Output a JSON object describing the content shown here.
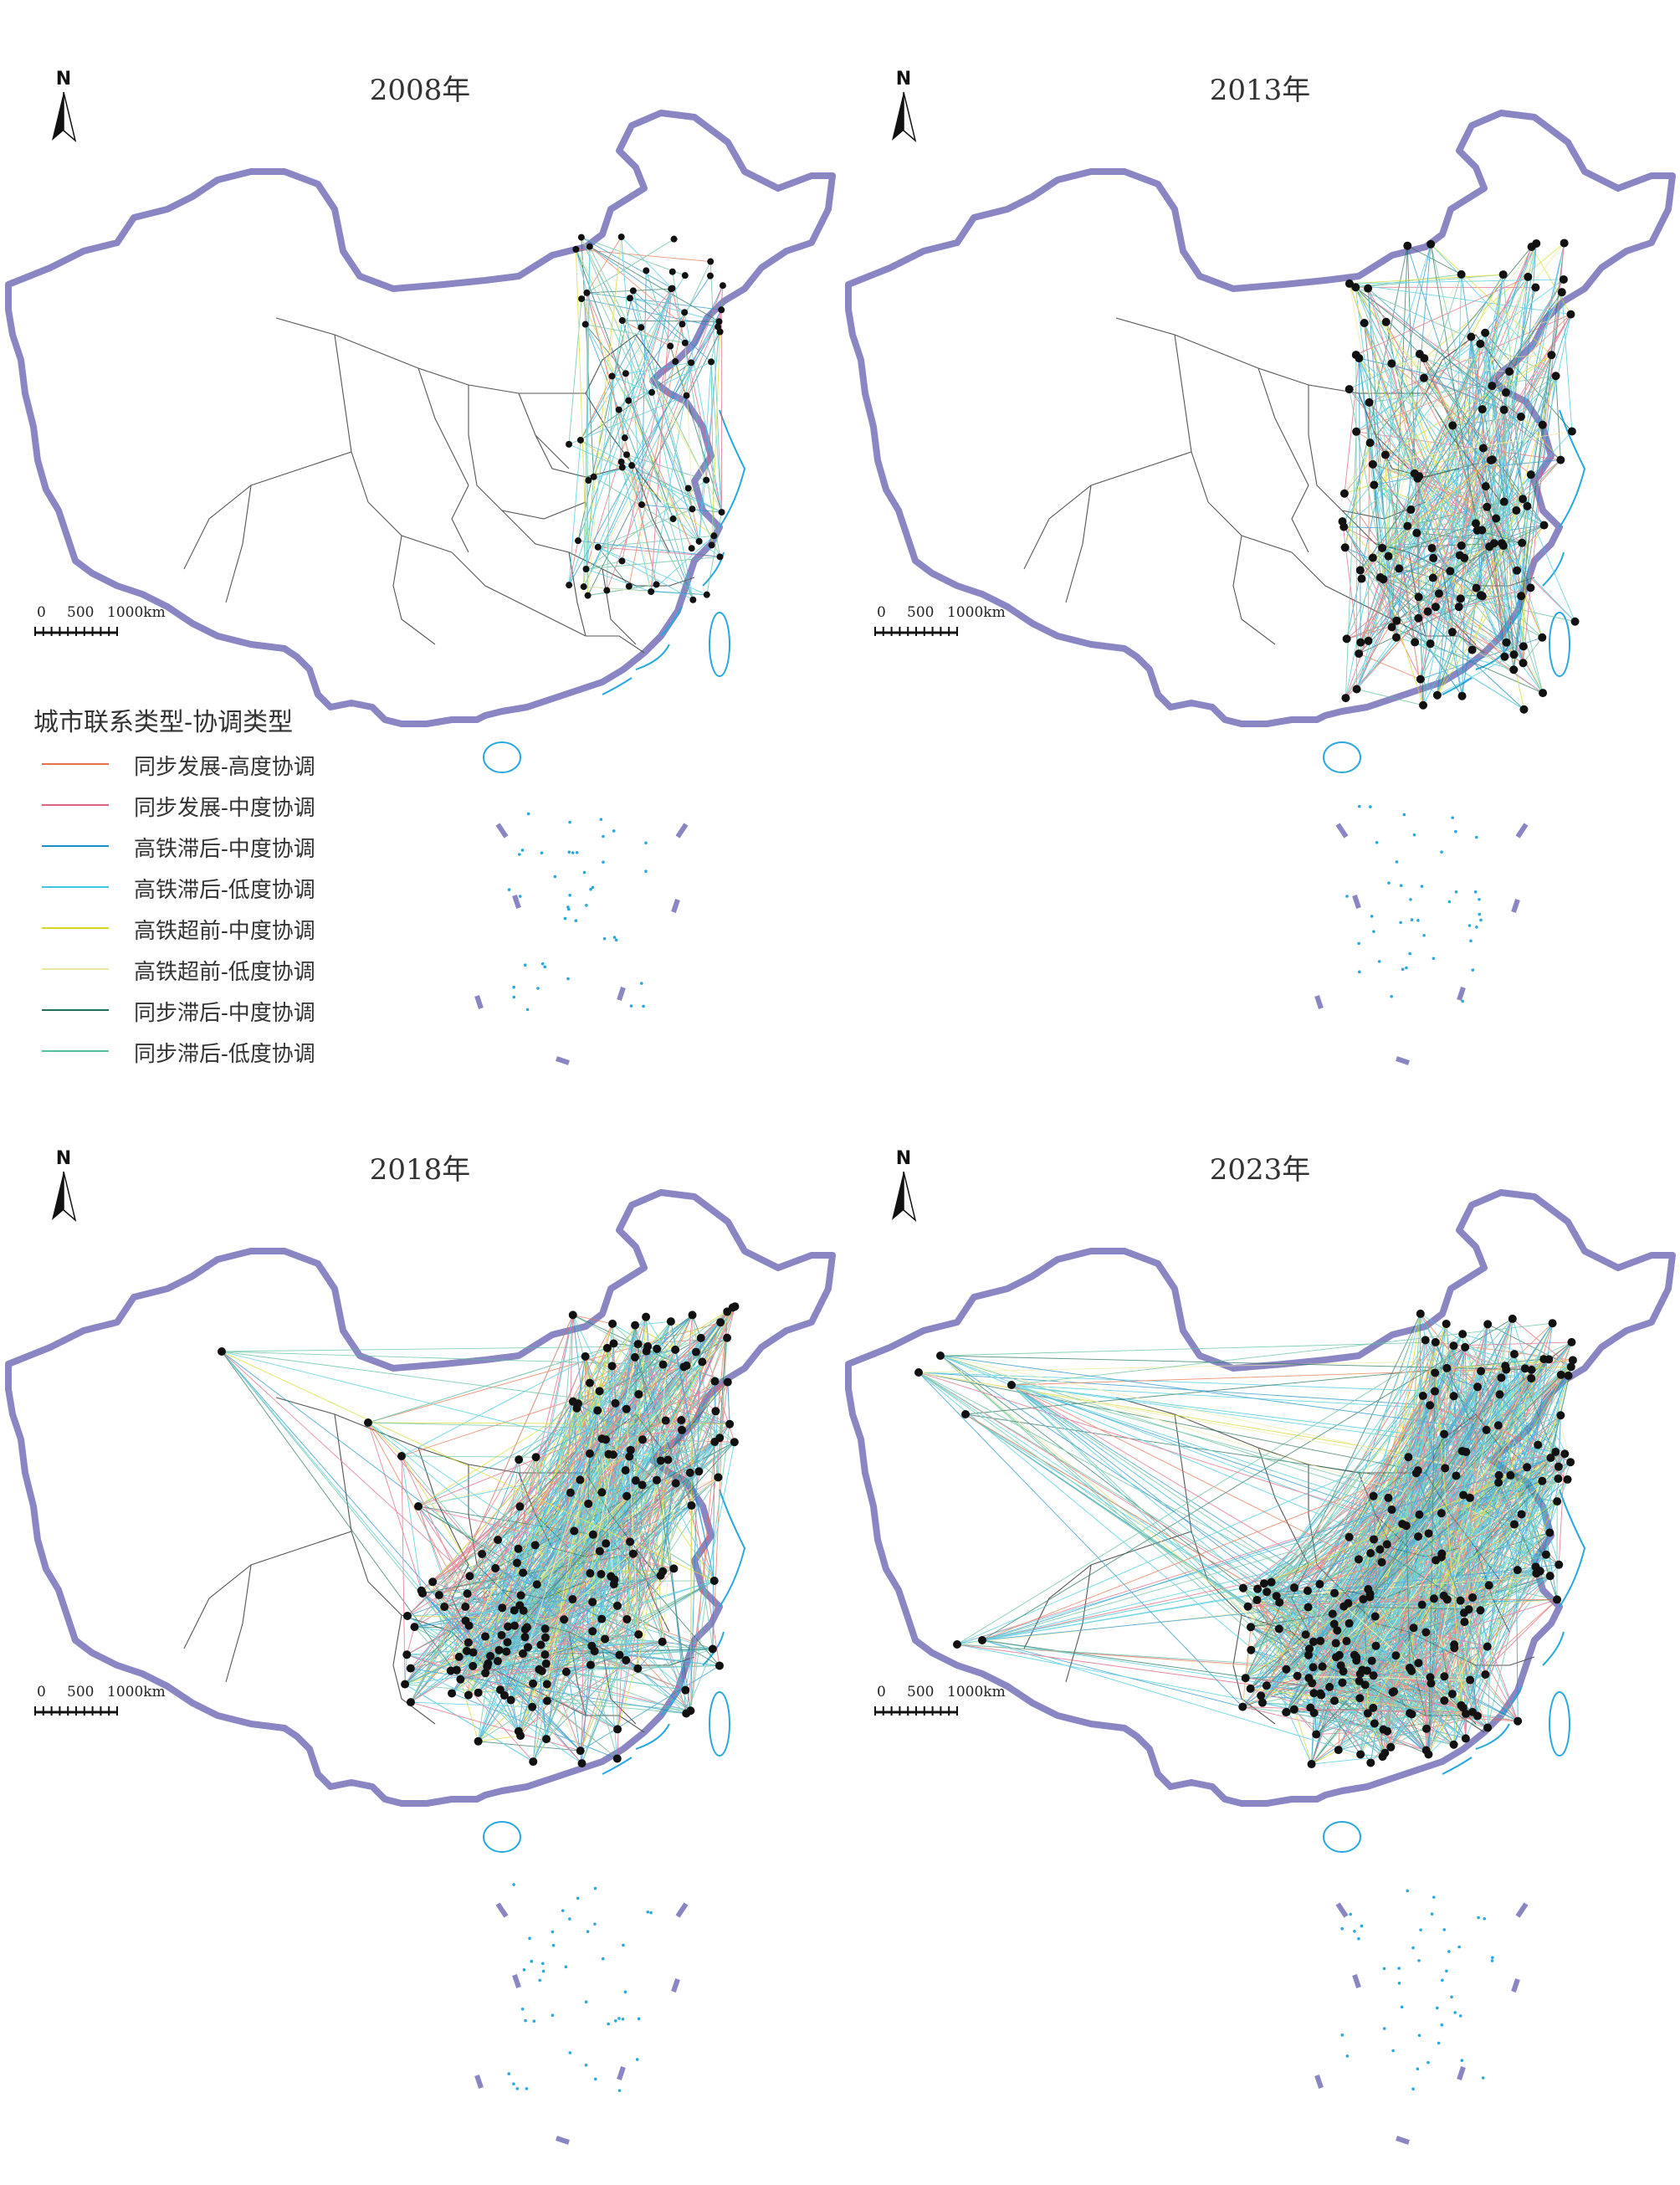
{
  "panels": [
    {
      "id": "p2008",
      "title": "2008年"
    },
    {
      "id": "p2013",
      "title": "2013年"
    },
    {
      "id": "p2018",
      "title": "2018年"
    },
    {
      "id": "p2023",
      "title": "2023年"
    }
  ],
  "north_label": "N",
  "scale": {
    "labels": [
      "0",
      "500",
      "1000km"
    ]
  },
  "legend": {
    "title": "城市联系类型-协调类型",
    "items": [
      {
        "label": "同步发展-高度协调",
        "color": "#e8704a"
      },
      {
        "label": "同步发展-中度协调",
        "color": "#e0607e"
      },
      {
        "label": "高铁滞后-中度协调",
        "color": "#1a8fc9"
      },
      {
        "label": "高铁滞后-低度协调",
        "color": "#3cc8e0"
      },
      {
        "label": "高铁超前-中度协调",
        "color": "#d8d820"
      },
      {
        "label": "高铁超前-低度协调",
        "color": "#ece89a"
      },
      {
        "label": "同步滞后-中度协调",
        "color": "#1f6f5a"
      },
      {
        "label": "同步滞后-低度协调",
        "color": "#5cbf9a"
      }
    ]
  },
  "colors": {
    "border": "#8a86c4",
    "province_line": "#555555",
    "coast": "#29a8df",
    "node": "#111111"
  },
  "network_density": {
    "2008": 0.25,
    "2013": 0.55,
    "2018": 0.85,
    "2023": 1.0
  }
}
